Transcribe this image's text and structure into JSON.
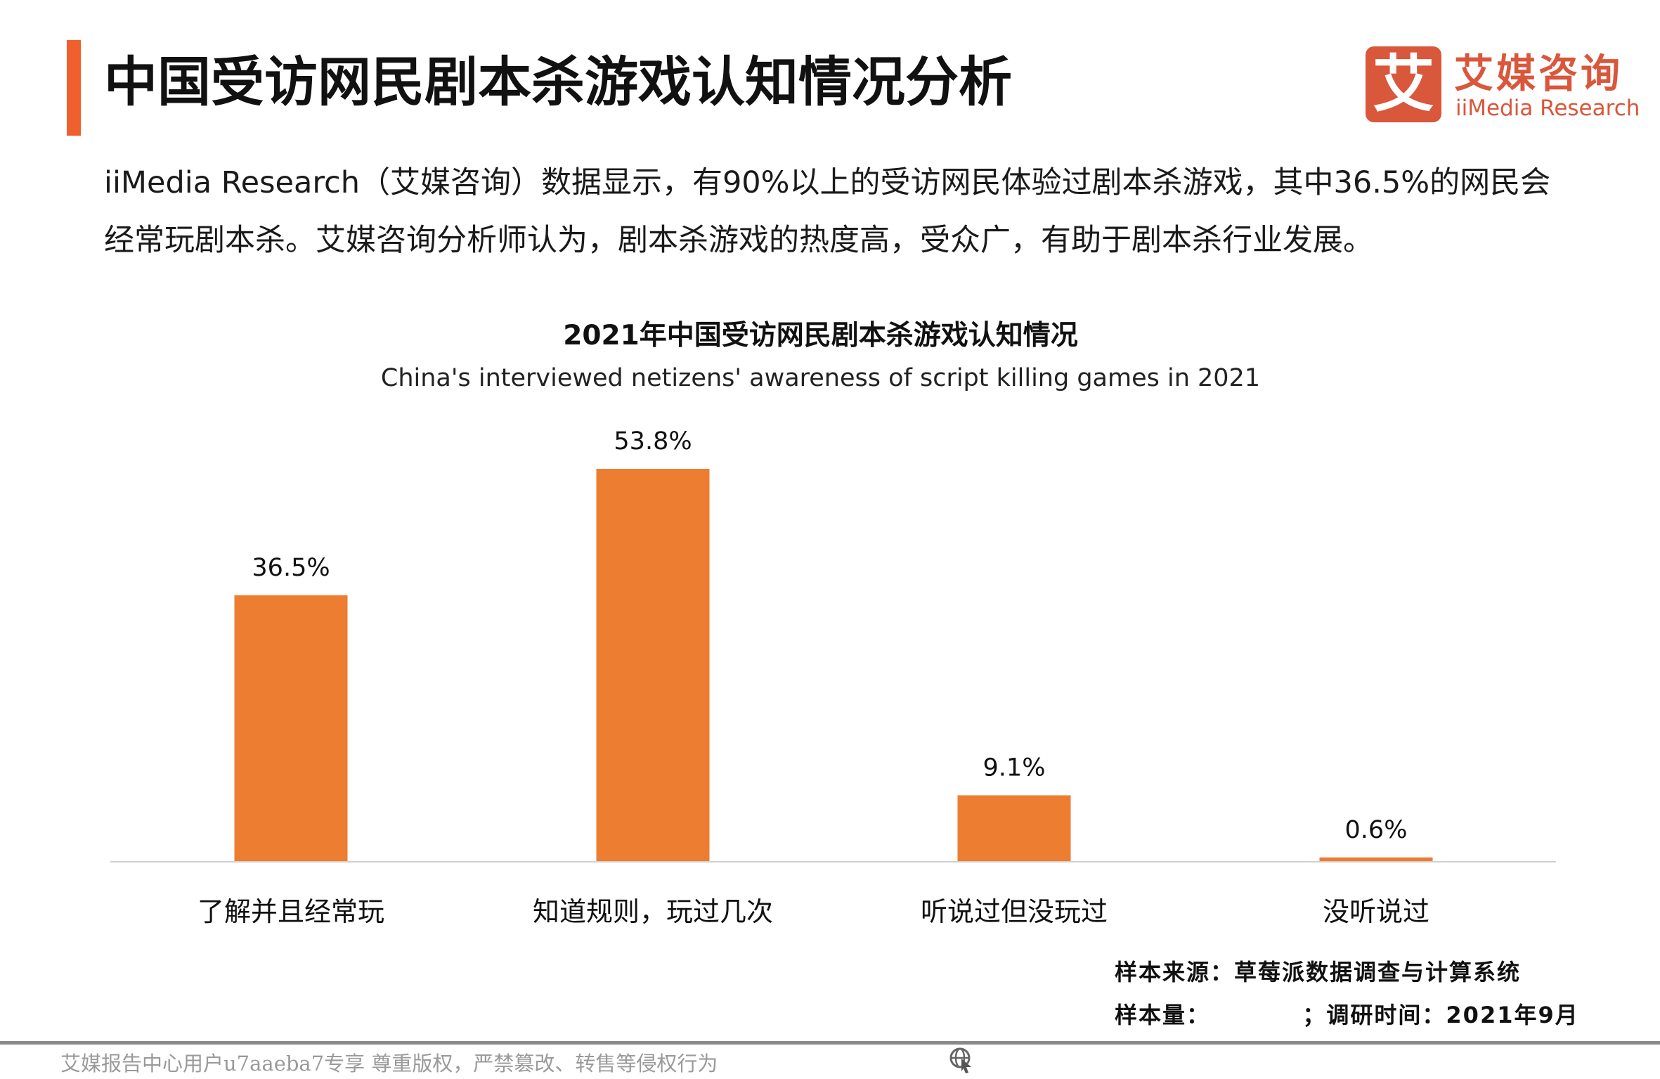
{
  "header": {
    "title": "中国受访网民剧本杀游戏认知情况分析",
    "logo_cn": "艾媒咨询",
    "logo_mark": "艾",
    "logo_en": "iiMedia Research"
  },
  "description": {
    "line1": "iiMedia Research（艾媒咨询）数据显示，有90%以上的受访网民体验过剧本杀游戏，其中36.5%的网民会",
    "line2": "经常玩剧本杀。艾媒咨询分析师认为，剧本杀游戏的热度高，受众广，有助于剧本杀行业发展。"
  },
  "chart_data": {
    "type": "bar",
    "title": "2021年中国受访网民剧本杀游戏认知情况",
    "subtitle": "China's interviewed netizens' awareness of script killing games in 2021",
    "categories": [
      "了解并且经常玩",
      "知道规则，玩过几次",
      "听说过但没玩过",
      "没听说过"
    ],
    "values": [
      36.5,
      53.8,
      9.1,
      0.6
    ],
    "value_labels": [
      "36.5%",
      "53.8%",
      "9.1%",
      "0.6%"
    ],
    "xlabel": "",
    "ylabel": "",
    "ylim": [
      0,
      53.8
    ],
    "grid": false,
    "bar_color": "#ED7D31"
  },
  "source": {
    "line1": "样本来源：草莓派数据调查与计算系统",
    "line2": "样本量：          ；调研时间：2021年9月"
  },
  "footer": {
    "watermark": "艾媒报告中心用户u7aaeba7专享 尊重版权，严禁篡改、转售等侵权行为"
  }
}
